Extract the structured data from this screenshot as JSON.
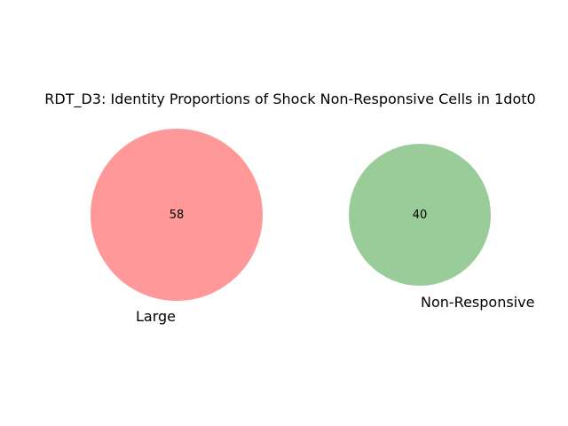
{
  "title": "RDT_D3: Identity Proportions of Shock Non-Responsive Cells in 1dot0",
  "sets": [
    {
      "name": "Large",
      "count": "58",
      "color": "#ff9999",
      "size": 58
    },
    {
      "name": "Non-Responsive",
      "count": "40",
      "color": "#99cc99",
      "size": 40
    }
  ]
}
